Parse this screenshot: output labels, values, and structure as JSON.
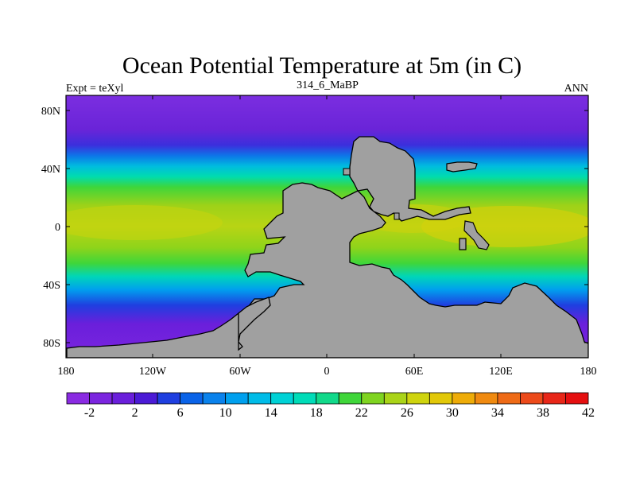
{
  "map": {
    "title": "Ocean Potential Temperature at 5m (in C)",
    "subtitle_left": "Expt = teXyl",
    "subtitle_center": "314_6_MaBP",
    "subtitle_right": "ANN",
    "land_color": "#a0a0a0",
    "lon_ticks": [
      "180",
      "120W",
      "60W",
      "0",
      "60E",
      "120E",
      "180"
    ],
    "lat_ticks": [
      "80N",
      "40N",
      "0",
      "40S",
      "80S"
    ]
  },
  "colorbar": {
    "labels": [
      "-2",
      "2",
      "6",
      "10",
      "14",
      "18",
      "22",
      "26",
      "30",
      "34",
      "38",
      "42"
    ],
    "colors": [
      "#8a2be2",
      "#7b25df",
      "#6a1fdb",
      "#4b1ad6",
      "#1f3fe0",
      "#0a63e8",
      "#0a82ec",
      "#00a0ee",
      "#00bce8",
      "#00d2d6",
      "#00dcb8",
      "#11d98a",
      "#3fd63a",
      "#7fd420",
      "#aad418",
      "#cfd40e",
      "#e2c808",
      "#eeac08",
      "#f08a10",
      "#ee6a16",
      "#ec4a1a",
      "#e82618",
      "#e50f10"
    ]
  }
}
